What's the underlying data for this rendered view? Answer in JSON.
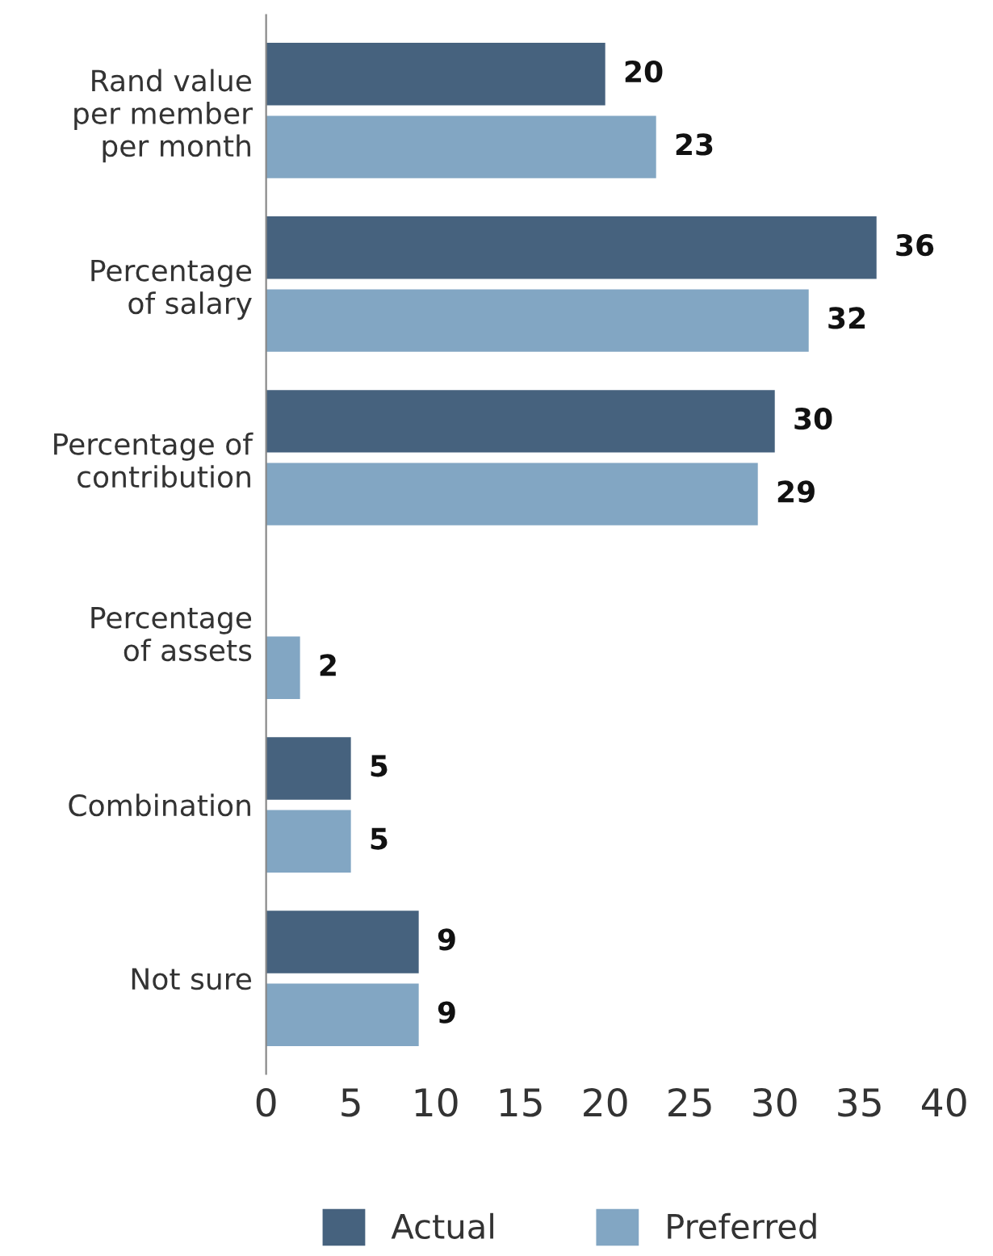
{
  "chart_data": {
    "type": "bar",
    "orientation": "horizontal",
    "categories": [
      "Rand value\nper member\nper month",
      "Percentage\nof salary",
      "Percentage of\ncontribution",
      "Percentage\nof assets",
      "Combination",
      "Not sure"
    ],
    "series": [
      {
        "name": "Actual",
        "color": "#46627e",
        "values": [
          20,
          36,
          30,
          0,
          5,
          9
        ],
        "value_labels": [
          "20",
          "36",
          "30",
          null,
          "5",
          "9"
        ]
      },
      {
        "name": "Preferred",
        "color": "#82a6c3",
        "values": [
          23,
          32,
          29,
          2,
          5,
          9
        ],
        "value_labels": [
          "23",
          "32",
          "29",
          "2",
          "5",
          "9"
        ]
      }
    ],
    "xlim": [
      0,
      40
    ],
    "xticks": [
      0,
      5,
      10,
      15,
      20,
      25,
      30,
      35,
      40
    ],
    "grid": false,
    "legend": "bottom"
  }
}
